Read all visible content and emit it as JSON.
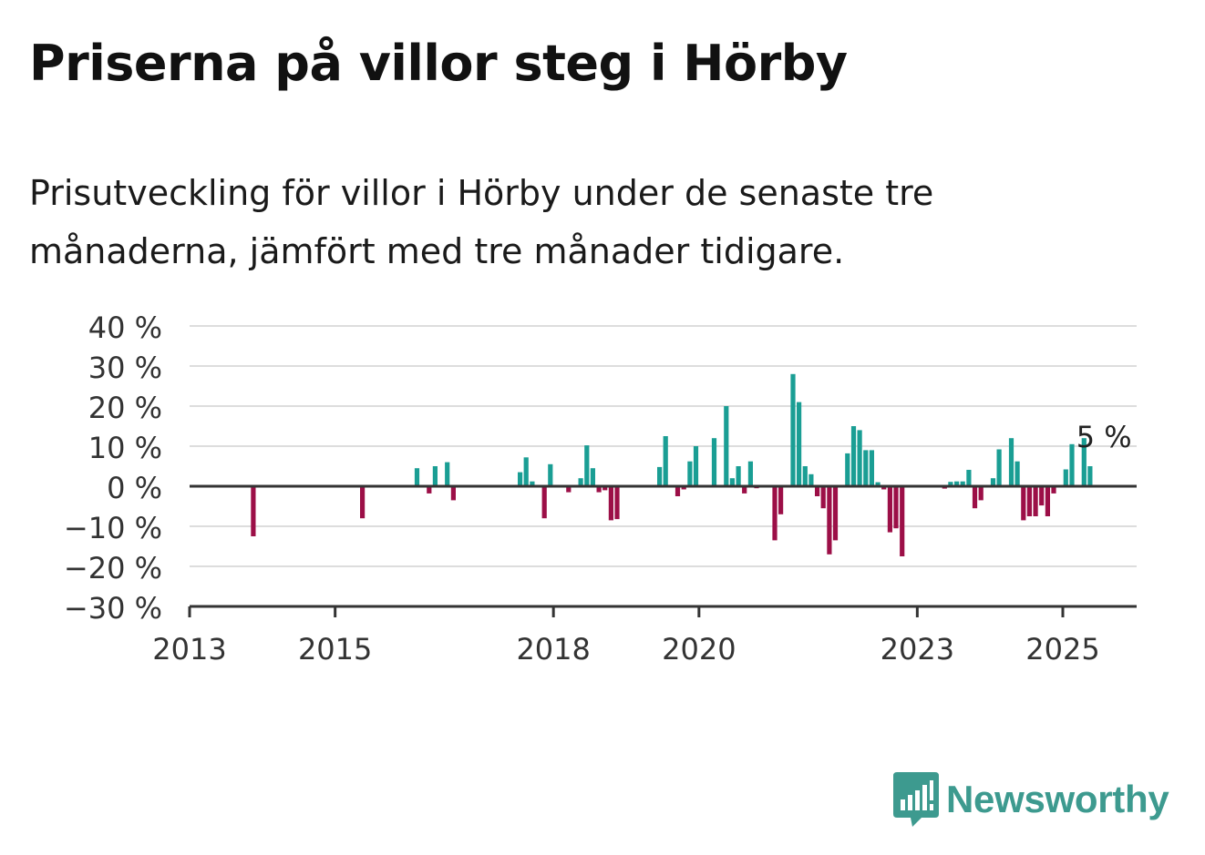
{
  "header": {
    "title": "Priserna på villor steg i Hörby",
    "subtitle": "Prisutveckling för villor i Hörby under de senaste tre månaderna, jämfört med tre månader tidigare."
  },
  "brand": {
    "name": "Newsworthy",
    "icon": "newsworthy-logo-icon",
    "color": "#3d9a8f"
  },
  "colors": {
    "positive": "#1a9e94",
    "negative": "#9c0f47",
    "grid": "#dddddd",
    "axis": "#333333"
  },
  "chart_data": {
    "type": "bar",
    "x_unit": "date",
    "y_unit": "%",
    "ylim": [
      -30,
      40
    ],
    "yticks": [
      40,
      30,
      20,
      10,
      0,
      -10,
      -20,
      -30
    ],
    "ytick_labels": [
      "40 %",
      "30 %",
      "20 %",
      "10 %",
      "0 %",
      "−10 %",
      "−20 %",
      "−30 %"
    ],
    "xticks": [
      "2013",
      "2015",
      "2018",
      "2020",
      "2023",
      "2025"
    ],
    "grid": true,
    "annotation": {
      "text": "5 %",
      "date": "2025-07"
    },
    "x": [
      "2013-11",
      "2015-05",
      "2016-02",
      "2016-04",
      "2016-05",
      "2016-07",
      "2016-08",
      "2017-07",
      "2017-08",
      "2017-09",
      "2017-11",
      "2017-12",
      "2018-03",
      "2018-05",
      "2018-06",
      "2018-07",
      "2018-08",
      "2018-09",
      "2018-10",
      "2018-11",
      "2019-06",
      "2019-07",
      "2019-09",
      "2019-10",
      "2019-11",
      "2019-12",
      "2020-03",
      "2020-05",
      "2020-06",
      "2020-07",
      "2020-08",
      "2020-09",
      "2020-10",
      "2021-01",
      "2021-02",
      "2021-04",
      "2021-05",
      "2021-06",
      "2021-07",
      "2021-08",
      "2021-09",
      "2021-10",
      "2021-11",
      "2022-01",
      "2022-02",
      "2022-03",
      "2022-04",
      "2022-05",
      "2022-06",
      "2022-07",
      "2022-08",
      "2022-09",
      "2022-10",
      "2023-05",
      "2023-06",
      "2023-07",
      "2023-08",
      "2023-09",
      "2023-10",
      "2023-11",
      "2024-01",
      "2024-02",
      "2024-04",
      "2024-05",
      "2024-06",
      "2024-07",
      "2024-08",
      "2024-09",
      "2024-10",
      "2024-11",
      "2025-01",
      "2025-02",
      "2025-04",
      "2025-05"
    ],
    "values": [
      -12.5,
      -8,
      4.5,
      -1.8,
      5,
      6,
      -3.5,
      3.5,
      7.2,
      1.2,
      -8,
      5.5,
      -1.5,
      2,
      10.2,
      4.5,
      -1.5,
      -1,
      -8.5,
      -8.2,
      4.8,
      12.5,
      -2.5,
      -0.8,
      6.2,
      10,
      12,
      20,
      2,
      5,
      -1.8,
      6.2,
      -0.5,
      -13.5,
      -7,
      28,
      21,
      5,
      3,
      -2.5,
      -5.5,
      -17,
      -13.5,
      8.2,
      15,
      14,
      9,
      9,
      1,
      -0.8,
      -11.5,
      -10.5,
      -17.5,
      -0.6,
      1.1,
      1.2,
      1.2,
      4.1,
      -5.5,
      -3.5,
      2,
      9.2,
      12,
      6.2,
      -8.5,
      -7.5,
      -7.5,
      -4.8,
      -7.5,
      -1.8,
      4.2,
      10.5,
      12,
      5
    ]
  }
}
